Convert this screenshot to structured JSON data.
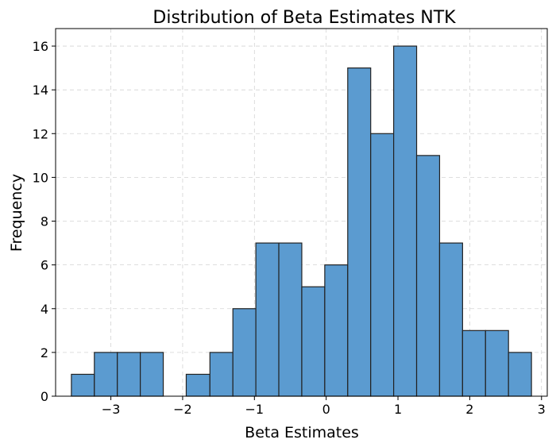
{
  "chart_data": {
    "type": "bar",
    "subtype": "histogram",
    "title": "Distribution of Beta Estimates NTK",
    "xlabel": "Beta Estimates",
    "ylabel": "Frequency",
    "xlim": [
      -3.77,
      3.08
    ],
    "ylim": [
      0,
      16.8
    ],
    "x_ticks": [
      -3,
      -2,
      -1,
      0,
      1,
      2,
      3
    ],
    "x_tick_labels": [
      "−3",
      "−2",
      "−1",
      "0",
      "1",
      "2",
      "3"
    ],
    "y_ticks": [
      0,
      2,
      4,
      6,
      8,
      10,
      12,
      14,
      16
    ],
    "y_tick_labels": [
      "0",
      "2",
      "4",
      "6",
      "8",
      "10",
      "12",
      "14",
      "16"
    ],
    "bin_edges": [
      -3.55,
      -3.23,
      -2.91,
      -2.59,
      -2.27,
      -1.95,
      -1.62,
      -1.3,
      -0.98,
      -0.66,
      -0.34,
      -0.02,
      0.3,
      0.62,
      0.94,
      1.26,
      1.58,
      1.9,
      2.22,
      2.54,
      2.86
    ],
    "counts": [
      1,
      2,
      2,
      2,
      0,
      1,
      2,
      4,
      7,
      7,
      5,
      6,
      15,
      12,
      16,
      11,
      7,
      3,
      3,
      2
    ],
    "bar_color": "#5b9bd0",
    "edge_color": "#222222",
    "grid": true
  }
}
